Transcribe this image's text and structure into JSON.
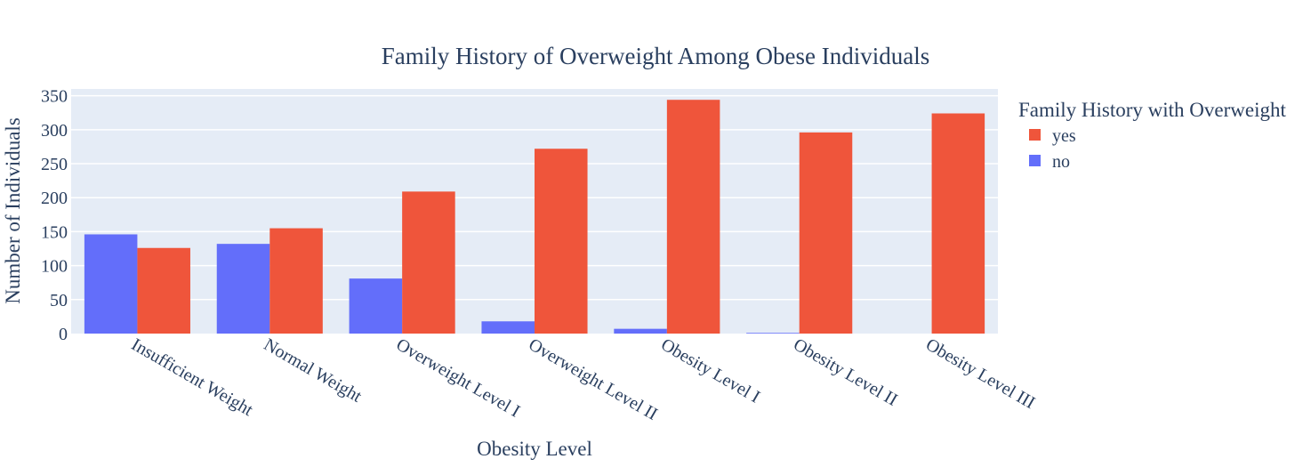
{
  "chart_data": {
    "type": "bar",
    "title": "Family History of Overweight Among Obese Individuals",
    "xlabel": "Obesity Level",
    "ylabel": "Number of Individuals",
    "categories": [
      "Insufficient Weight",
      "Normal Weight",
      "Overweight Level I",
      "Overweight Level II",
      "Obesity Level I",
      "Obesity Level II",
      "Obesity Level III"
    ],
    "series": [
      {
        "name": "no",
        "color": "#636efa",
        "values": [
          146,
          132,
          81,
          18,
          7,
          1,
          0
        ]
      },
      {
        "name": "yes",
        "color": "#ef553b",
        "values": [
          126,
          155,
          209,
          272,
          344,
          296,
          324
        ]
      }
    ],
    "legend": {
      "title": "Family History with Overweight",
      "order": [
        "yes",
        "no"
      ],
      "placement": "right"
    },
    "ylim": [
      0,
      360
    ],
    "yticks": [
      0,
      50,
      100,
      150,
      200,
      250,
      300,
      350
    ],
    "grid": true,
    "barmode": "group",
    "plot_bg": "#e5ecf6"
  }
}
